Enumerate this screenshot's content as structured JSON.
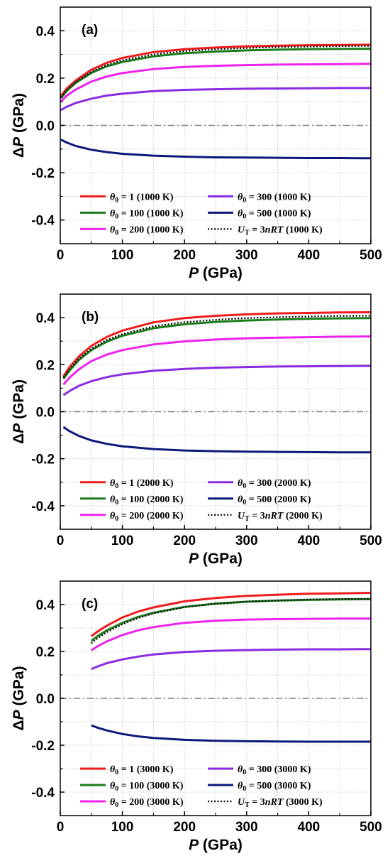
{
  "chart_data": [
    {
      "type": "line",
      "panel_label": "(a)",
      "xlabel_italic": "P",
      "xlabel_rest": " (GPa)",
      "ylabel_prefix": "Δ",
      "ylabel_italic": "P",
      "ylabel_rest": " (GPa)",
      "xlim": [
        0,
        500
      ],
      "ylim": [
        -0.5,
        0.5
      ],
      "xticks": [
        "0",
        "100",
        "200",
        "300",
        "400",
        "500"
      ],
      "yticks": [
        "-0.4",
        "-0.2",
        "0.0",
        "0.2",
        "0.4"
      ],
      "grid": true,
      "legend_position": "bottom",
      "series": [
        {
          "theta": "1",
          "temp": " (1000 K)",
          "color": "#ee1c1c",
          "style": "solid",
          "x": [
            1,
            10,
            25,
            50,
            75,
            100,
            150,
            200,
            250,
            300,
            350,
            400,
            450,
            500
          ],
          "y": [
            0.125,
            0.155,
            0.19,
            0.235,
            0.265,
            0.285,
            0.31,
            0.322,
            0.329,
            0.334,
            0.337,
            0.339,
            0.34,
            0.341
          ]
        },
        {
          "theta": "100",
          "temp": " (1000 K)",
          "color": "#1a7d1a",
          "style": "solid",
          "x": [
            1,
            10,
            25,
            50,
            75,
            100,
            150,
            200,
            250,
            300,
            350,
            400,
            450,
            500
          ],
          "y": [
            0.115,
            0.145,
            0.18,
            0.222,
            0.25,
            0.268,
            0.292,
            0.305,
            0.312,
            0.317,
            0.32,
            0.322,
            0.323,
            0.324
          ]
        },
        {
          "theta": "200",
          "temp": " (1000 K)",
          "color": "#ee22ee",
          "style": "solid",
          "x": [
            1,
            10,
            25,
            50,
            75,
            100,
            150,
            200,
            250,
            300,
            350,
            400,
            450,
            500
          ],
          "y": [
            0.1,
            0.125,
            0.152,
            0.185,
            0.207,
            0.221,
            0.238,
            0.247,
            0.252,
            0.255,
            0.257,
            0.258,
            0.259,
            0.26
          ]
        },
        {
          "theta": "300",
          "temp": " (1000 K)",
          "color": "#8a2be2",
          "style": "solid",
          "x": [
            1,
            10,
            25,
            50,
            75,
            100,
            150,
            200,
            250,
            300,
            350,
            400,
            450,
            500
          ],
          "y": [
            0.065,
            0.078,
            0.095,
            0.113,
            0.126,
            0.134,
            0.145,
            0.15,
            0.153,
            0.155,
            0.156,
            0.157,
            0.158,
            0.158
          ]
        },
        {
          "theta": "500",
          "temp": " (1000 K)",
          "color": "#0b1a7a",
          "style": "solid",
          "x": [
            1,
            10,
            25,
            50,
            75,
            100,
            150,
            200,
            250,
            300,
            350,
            400,
            450,
            500
          ],
          "y": [
            -0.06,
            -0.072,
            -0.087,
            -0.103,
            -0.113,
            -0.12,
            -0.128,
            -0.132,
            -0.135,
            -0.136,
            -0.137,
            -0.138,
            -0.138,
            -0.139
          ]
        },
        {
          "theta": "",
          "temp": " (1000 K)",
          "ut": true,
          "color": "#000000",
          "style": "dotted",
          "x": [
            1,
            10,
            25,
            50,
            75,
            100,
            150,
            200,
            250,
            300,
            350,
            400,
            450,
            500
          ],
          "y": [
            0.118,
            0.148,
            0.183,
            0.226,
            0.256,
            0.275,
            0.3,
            0.314,
            0.322,
            0.327,
            0.331,
            0.333,
            0.335,
            0.336
          ]
        }
      ]
    },
    {
      "type": "line",
      "panel_label": "(b)",
      "xlabel_italic": "P",
      "xlabel_rest": " (GPa)",
      "ylabel_prefix": "Δ",
      "ylabel_italic": "P",
      "ylabel_rest": " (GPa)",
      "xlim": [
        0,
        500
      ],
      "ylim": [
        -0.5,
        0.5
      ],
      "xticks": [
        "0",
        "100",
        "200",
        "300",
        "400",
        "500"
      ],
      "yticks": [
        "-0.4",
        "-0.2",
        "0.0",
        "0.2",
        "0.4"
      ],
      "grid": true,
      "legend_position": "bottom",
      "series": [
        {
          "theta": "1",
          "temp": " (2000 K)",
          "color": "#ee1c1c",
          "style": "solid",
          "x": [
            5,
            15,
            30,
            50,
            75,
            100,
            150,
            200,
            250,
            300,
            350,
            400,
            450,
            500
          ],
          "y": [
            0.15,
            0.19,
            0.235,
            0.28,
            0.318,
            0.345,
            0.38,
            0.398,
            0.408,
            0.414,
            0.418,
            0.42,
            0.422,
            0.423
          ]
        },
        {
          "theta": "100",
          "temp": " (2000 K)",
          "color": "#1a7d1a",
          "style": "solid",
          "x": [
            5,
            15,
            30,
            50,
            75,
            100,
            150,
            200,
            250,
            300,
            350,
            400,
            450,
            500
          ],
          "y": [
            0.14,
            0.175,
            0.22,
            0.262,
            0.298,
            0.323,
            0.355,
            0.372,
            0.382,
            0.388,
            0.392,
            0.395,
            0.397,
            0.398
          ]
        },
        {
          "theta": "200",
          "temp": " (2000 K)",
          "color": "#ee22ee",
          "style": "solid",
          "x": [
            5,
            15,
            30,
            50,
            75,
            100,
            150,
            200,
            250,
            300,
            350,
            400,
            450,
            500
          ],
          "y": [
            0.115,
            0.145,
            0.18,
            0.215,
            0.243,
            0.262,
            0.286,
            0.299,
            0.307,
            0.312,
            0.315,
            0.317,
            0.319,
            0.32
          ]
        },
        {
          "theta": "300",
          "temp": " (2000 K)",
          "color": "#8a2be2",
          "style": "solid",
          "x": [
            5,
            15,
            30,
            50,
            75,
            100,
            150,
            200,
            250,
            300,
            350,
            400,
            450,
            500
          ],
          "y": [
            0.07,
            0.088,
            0.11,
            0.13,
            0.147,
            0.159,
            0.174,
            0.182,
            0.187,
            0.19,
            0.192,
            0.193,
            0.194,
            0.195
          ]
        },
        {
          "theta": "500",
          "temp": " (2000 K)",
          "color": "#0b1a7a",
          "style": "solid",
          "x": [
            5,
            15,
            30,
            50,
            75,
            100,
            150,
            200,
            250,
            300,
            350,
            400,
            450,
            500
          ],
          "y": [
            -0.065,
            -0.083,
            -0.103,
            -0.122,
            -0.137,
            -0.147,
            -0.159,
            -0.165,
            -0.168,
            -0.17,
            -0.171,
            -0.172,
            -0.173,
            -0.173
          ]
        },
        {
          "theta": "",
          "temp": " (2000 K)",
          "ut": true,
          "color": "#000000",
          "style": "dotted",
          "x": [
            5,
            15,
            30,
            50,
            75,
            100,
            150,
            200,
            250,
            300,
            350,
            400,
            450,
            500
          ],
          "y": [
            0.145,
            0.18,
            0.225,
            0.268,
            0.305,
            0.33,
            0.363,
            0.381,
            0.391,
            0.398,
            0.402,
            0.405,
            0.407,
            0.408
          ]
        }
      ]
    },
    {
      "type": "line",
      "panel_label": "(c)",
      "xlabel_italic": "P",
      "xlabel_rest": " (GPa)",
      "ylabel_prefix": "Δ",
      "ylabel_italic": "P",
      "ylabel_rest": " (GPa)",
      "xlim": [
        0,
        500
      ],
      "ylim": [
        -0.5,
        0.5
      ],
      "xticks": [
        "0",
        "100",
        "200",
        "300",
        "400",
        "500"
      ],
      "yticks": [
        "-0.4",
        "-0.2",
        "0.0",
        "0.2",
        "0.4"
      ],
      "grid": true,
      "legend_position": "bottom",
      "series": [
        {
          "theta": "1",
          "temp": " (3000 K)",
          "color": "#ee1c1c",
          "style": "solid",
          "x": [
            50,
            60,
            75,
            100,
            125,
            150,
            200,
            250,
            300,
            350,
            400,
            450,
            500
          ],
          "y": [
            0.265,
            0.285,
            0.31,
            0.345,
            0.37,
            0.388,
            0.414,
            0.428,
            0.437,
            0.442,
            0.446,
            0.448,
            0.45
          ]
        },
        {
          "theta": "100",
          "temp": " (3000 K)",
          "color": "#1a7d1a",
          "style": "solid",
          "x": [
            50,
            60,
            75,
            100,
            125,
            150,
            200,
            250,
            300,
            350,
            400,
            450,
            500
          ],
          "y": [
            0.245,
            0.265,
            0.29,
            0.322,
            0.347,
            0.365,
            0.39,
            0.404,
            0.412,
            0.417,
            0.42,
            0.422,
            0.423
          ]
        },
        {
          "theta": "200",
          "temp": " (3000 K)",
          "color": "#ee22ee",
          "style": "solid",
          "x": [
            50,
            60,
            75,
            100,
            125,
            150,
            200,
            250,
            300,
            350,
            400,
            450,
            500
          ],
          "y": [
            0.205,
            0.222,
            0.243,
            0.27,
            0.29,
            0.304,
            0.322,
            0.331,
            0.336,
            0.338,
            0.339,
            0.34,
            0.34
          ]
        },
        {
          "theta": "300",
          "temp": " (3000 K)",
          "color": "#8a2be2",
          "style": "solid",
          "x": [
            50,
            60,
            75,
            100,
            125,
            150,
            200,
            250,
            300,
            350,
            400,
            450,
            500
          ],
          "y": [
            0.125,
            0.136,
            0.15,
            0.166,
            0.178,
            0.187,
            0.198,
            0.203,
            0.206,
            0.208,
            0.209,
            0.209,
            0.21
          ]
        },
        {
          "theta": "500",
          "temp": " (3000 K)",
          "color": "#0b1a7a",
          "style": "solid",
          "x": [
            50,
            60,
            75,
            100,
            125,
            150,
            200,
            250,
            300,
            350,
            400,
            450,
            500
          ],
          "y": [
            -0.115,
            -0.125,
            -0.137,
            -0.152,
            -0.162,
            -0.169,
            -0.177,
            -0.181,
            -0.183,
            -0.184,
            -0.185,
            -0.185,
            -0.185
          ]
        },
        {
          "theta": "",
          "temp": " (3000 K)",
          "ut": true,
          "color": "#000000",
          "style": "dotted",
          "x": [
            50,
            60,
            75,
            100,
            125,
            150,
            200,
            250,
            300,
            350,
            400,
            450,
            500
          ],
          "y": [
            0.235,
            0.256,
            0.282,
            0.316,
            0.342,
            0.362,
            0.389,
            0.404,
            0.413,
            0.418,
            0.422,
            0.424,
            0.425
          ]
        }
      ]
    }
  ]
}
